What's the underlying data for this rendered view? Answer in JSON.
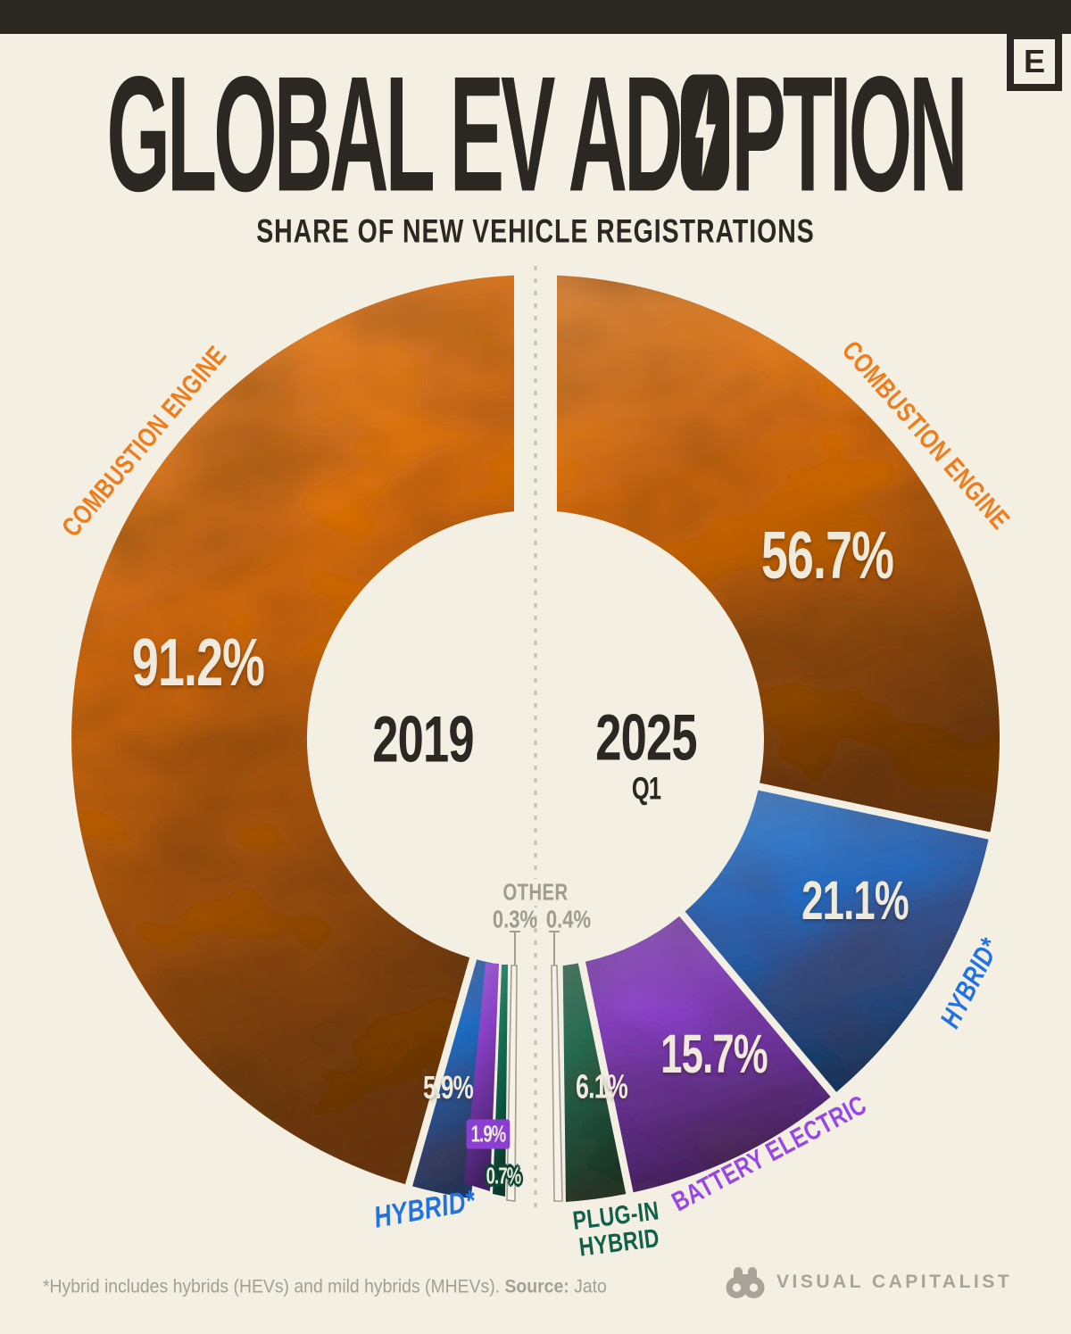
{
  "page": {
    "background": "#F3EFE3",
    "topbar_color": "#2B2723"
  },
  "header": {
    "badge_letter": "E",
    "title_part1": "GLOBAL EV AD",
    "title_part2": "PTION",
    "subtitle": "SHARE OF NEW VEHICLE REGISTRATIONS"
  },
  "chart_data": {
    "type": "pie",
    "variant": "split-half-donut-comparison",
    "title": "Global EV Adoption",
    "subtitle": "Share of new vehicle registrations",
    "unit": "%",
    "legend_position": "on-chart",
    "colors": {
      "combustion": "#DF700D",
      "hybrid": "#1E6FC8",
      "battery_electric": "#8840C6",
      "plug_in_hybrid": "#147055",
      "other": "#F6F2E8"
    },
    "halves": [
      {
        "side": "left",
        "year": "2019",
        "quarter": "",
        "segments": [
          {
            "name": "Combustion Engine",
            "value": 91.2,
            "display": "91.2%",
            "color_key": "combustion"
          },
          {
            "name": "Hybrid*",
            "value": 5.9,
            "display": "5.9%",
            "color_key": "hybrid"
          },
          {
            "name": "Battery Electric",
            "value": 1.9,
            "display": "1.9%",
            "color_key": "battery_electric"
          },
          {
            "name": "Plug-in Hybrid",
            "value": 0.7,
            "display": "0.7%",
            "color_key": "plug_in_hybrid"
          },
          {
            "name": "Other",
            "value": 0.3,
            "display": "0.3%",
            "color_key": "other"
          }
        ]
      },
      {
        "side": "right",
        "year": "2025",
        "quarter": "Q1",
        "segments": [
          {
            "name": "Combustion Engine",
            "value": 56.7,
            "display": "56.7%",
            "color_key": "combustion"
          },
          {
            "name": "Hybrid*",
            "value": 21.1,
            "display": "21.1%",
            "color_key": "hybrid"
          },
          {
            "name": "Battery Electric",
            "value": 15.7,
            "display": "15.7%",
            "color_key": "battery_electric"
          },
          {
            "name": "Plug-in Hybrid",
            "value": 6.1,
            "display": "6.1%",
            "color_key": "plug_in_hybrid"
          },
          {
            "name": "Other",
            "value": 0.4,
            "display": "0.4%",
            "color_key": "other"
          }
        ]
      }
    ]
  },
  "labels": {
    "combustion_left": "COMBUSTION ENGINE",
    "combustion_right": "COMBUSTION ENGINE",
    "hybrid_left": "HYBRID*",
    "hybrid_right": "HYBRID*",
    "battery_electric": "BATTERY ELECTRIC",
    "plug_in_hybrid_line1": "PLUG-IN",
    "plug_in_hybrid_line2": "HYBRID",
    "other": "OTHER",
    "other_left_value": "0.3%",
    "other_right_value": "0.4%"
  },
  "footer": {
    "footnote_text": "*Hybrid includes hybrids (HEVs) and mild hybrids (MHEVs). ",
    "source_label": "Source:",
    "source_value": " Jato",
    "brand": "VISUAL CAPITALIST"
  }
}
